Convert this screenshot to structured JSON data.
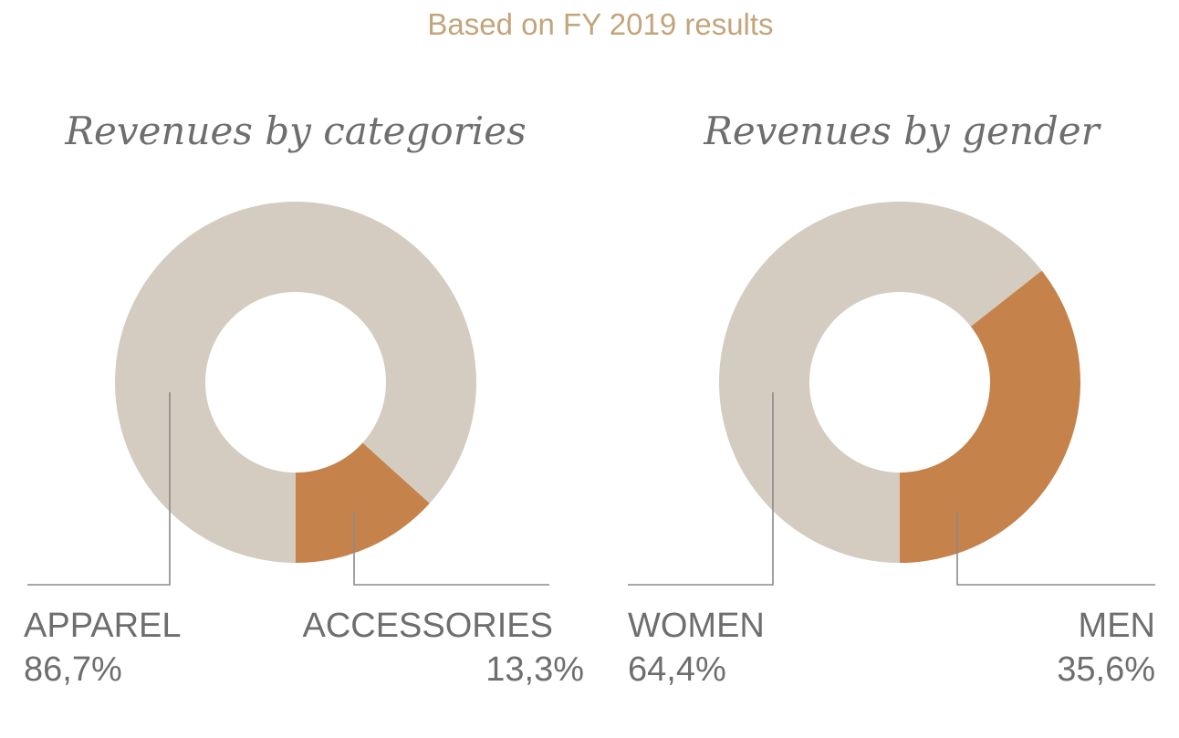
{
  "subtitle": "Based on FY 2019 results",
  "colors": {
    "major": "#d4ccc0",
    "minor": "#c5834b",
    "subtitle": "#c2a57a",
    "text": "#6e6e6e"
  },
  "chart_data": [
    {
      "type": "pie",
      "title": "Revenues by categories",
      "slices": [
        {
          "label": "APPAREL",
          "value": 86.7,
          "display": "86,7%"
        },
        {
          "label": "ACCESSORIES",
          "value": 13.3,
          "display": "13,3%"
        }
      ]
    },
    {
      "type": "pie",
      "title": "Revenues by gender",
      "slices": [
        {
          "label": "WOMEN",
          "value": 64.4,
          "display": "64,4%"
        },
        {
          "label": "MEN",
          "value": 35.6,
          "display": "35,6%"
        }
      ]
    }
  ]
}
